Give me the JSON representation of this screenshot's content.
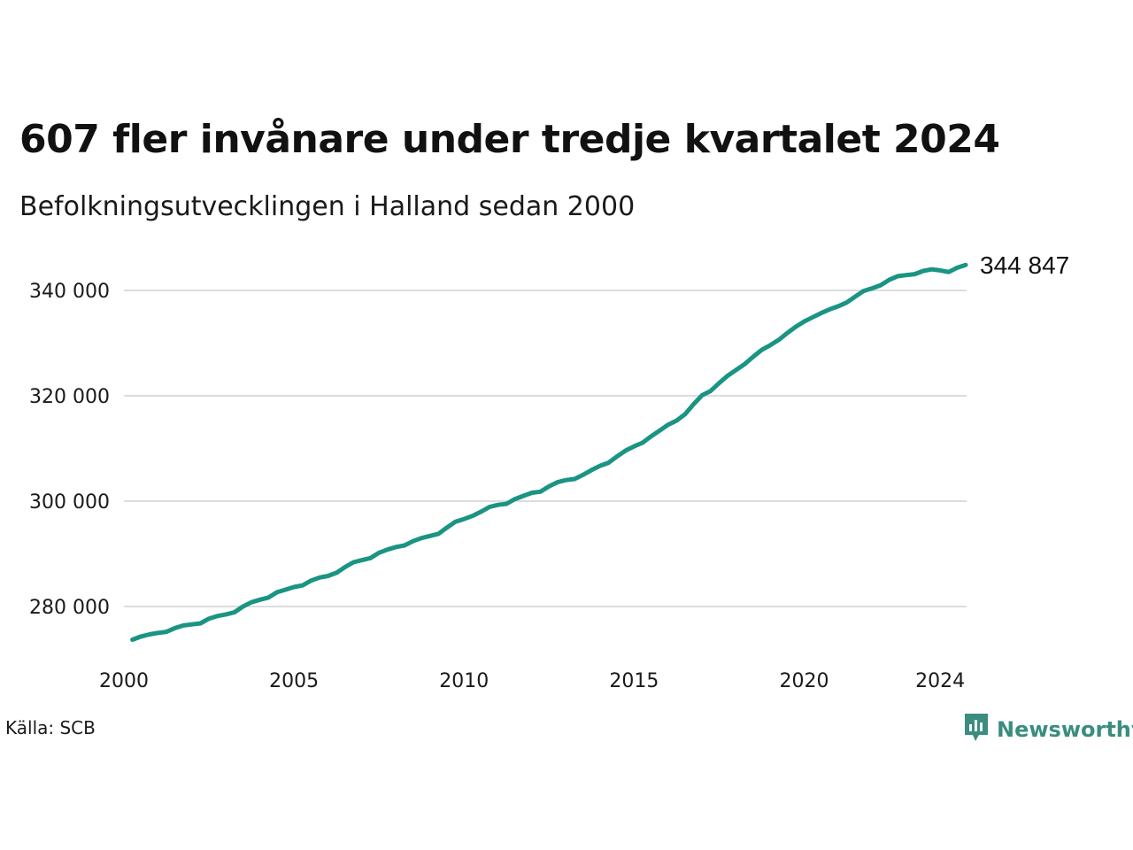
{
  "header": {
    "title": "607 fler invånare under tredje kvartalet 2024",
    "subtitle": "Befolkningsutvecklingen i Halland sedan 2000"
  },
  "footer": {
    "source": "Källa: SCB",
    "brand": "Newsworthy"
  },
  "colors": {
    "line": "#1a9483",
    "grid": "#dddddd",
    "brand": "#3a8d7f"
  },
  "icons": {
    "brand_logo": "newsworthy-logo-icon"
  },
  "chart_data": {
    "type": "line",
    "title": "607 fler invånare under tredje kvartalet 2024",
    "subtitle": "Befolkningsutvecklingen i Halland sedan 2000",
    "xlabel": "",
    "ylabel": "",
    "x_ticks": [
      2000,
      2005,
      2010,
      2015,
      2020,
      2024
    ],
    "y_ticks": [
      280000,
      300000,
      320000,
      340000
    ],
    "y_tick_labels": [
      "280 000",
      "300 000",
      "320 000",
      "340 000"
    ],
    "xlim": [
      2000,
      2024.75
    ],
    "ylim": [
      271000,
      349000
    ],
    "grid": "horizontal",
    "legend": "none",
    "end_label": "344 847",
    "series": [
      {
        "x": [
          2000.25,
          2000.5,
          2000.75,
          2001.0,
          2001.25,
          2001.5,
          2001.75,
          2002.0,
          2002.25,
          2002.5,
          2002.75,
          2003.0,
          2003.25,
          2003.5,
          2003.75,
          2004.0,
          2004.25,
          2004.5,
          2004.75,
          2005.0,
          2005.25,
          2005.5,
          2005.75,
          2006.0,
          2006.25,
          2006.5,
          2006.75,
          2007.0,
          2007.25,
          2007.5,
          2007.75,
          2008.0,
          2008.25,
          2008.5,
          2008.75,
          2009.0,
          2009.25,
          2009.5,
          2009.75,
          2010.0,
          2010.25,
          2010.5,
          2010.75,
          2011.0,
          2011.25,
          2011.5,
          2011.75,
          2012.0,
          2012.25,
          2012.5,
          2012.75,
          2013.0,
          2013.25,
          2013.5,
          2013.75,
          2014.0,
          2014.25,
          2014.5,
          2014.75,
          2015.0,
          2015.25,
          2015.5,
          2015.75,
          2016.0,
          2016.25,
          2016.5,
          2016.75,
          2017.0,
          2017.25,
          2017.5,
          2017.75,
          2018.0,
          2018.25,
          2018.5,
          2018.75,
          2019.0,
          2019.25,
          2019.5,
          2019.75,
          2020.0,
          2020.25,
          2020.5,
          2020.75,
          2021.0,
          2021.25,
          2021.5,
          2021.75,
          2022.0,
          2022.25,
          2022.5,
          2022.75,
          2023.0,
          2023.25,
          2023.5,
          2023.75,
          2024.0,
          2024.25,
          2024.5,
          2024.75
        ],
        "values": [
          273700,
          274300,
          274700,
          275000,
          275200,
          275900,
          276400,
          276600,
          276800,
          277700,
          278200,
          278500,
          278900,
          280000,
          280800,
          281300,
          281700,
          282700,
          283200,
          283700,
          284000,
          284900,
          285500,
          285800,
          286400,
          287500,
          288400,
          288800,
          289200,
          290200,
          290800,
          291300,
          291600,
          292400,
          293000,
          293400,
          293800,
          295000,
          296100,
          296600,
          297200,
          298000,
          298900,
          299300,
          299500,
          300400,
          301000,
          301600,
          301800,
          302800,
          303600,
          304000,
          304200,
          305000,
          305900,
          306700,
          307300,
          308500,
          309600,
          310400,
          311100,
          312300,
          313400,
          314500,
          315300,
          316500,
          318400,
          320100,
          320900,
          322400,
          323800,
          324900,
          326000,
          327400,
          328700,
          329600,
          330600,
          331900,
          333100,
          334100,
          334900,
          335700,
          336400,
          337000,
          337700,
          338800,
          339900,
          340400,
          341000,
          342000,
          342700,
          342900,
          343100,
          343700,
          344000,
          343800,
          343500,
          344300,
          344847
        ]
      }
    ]
  }
}
